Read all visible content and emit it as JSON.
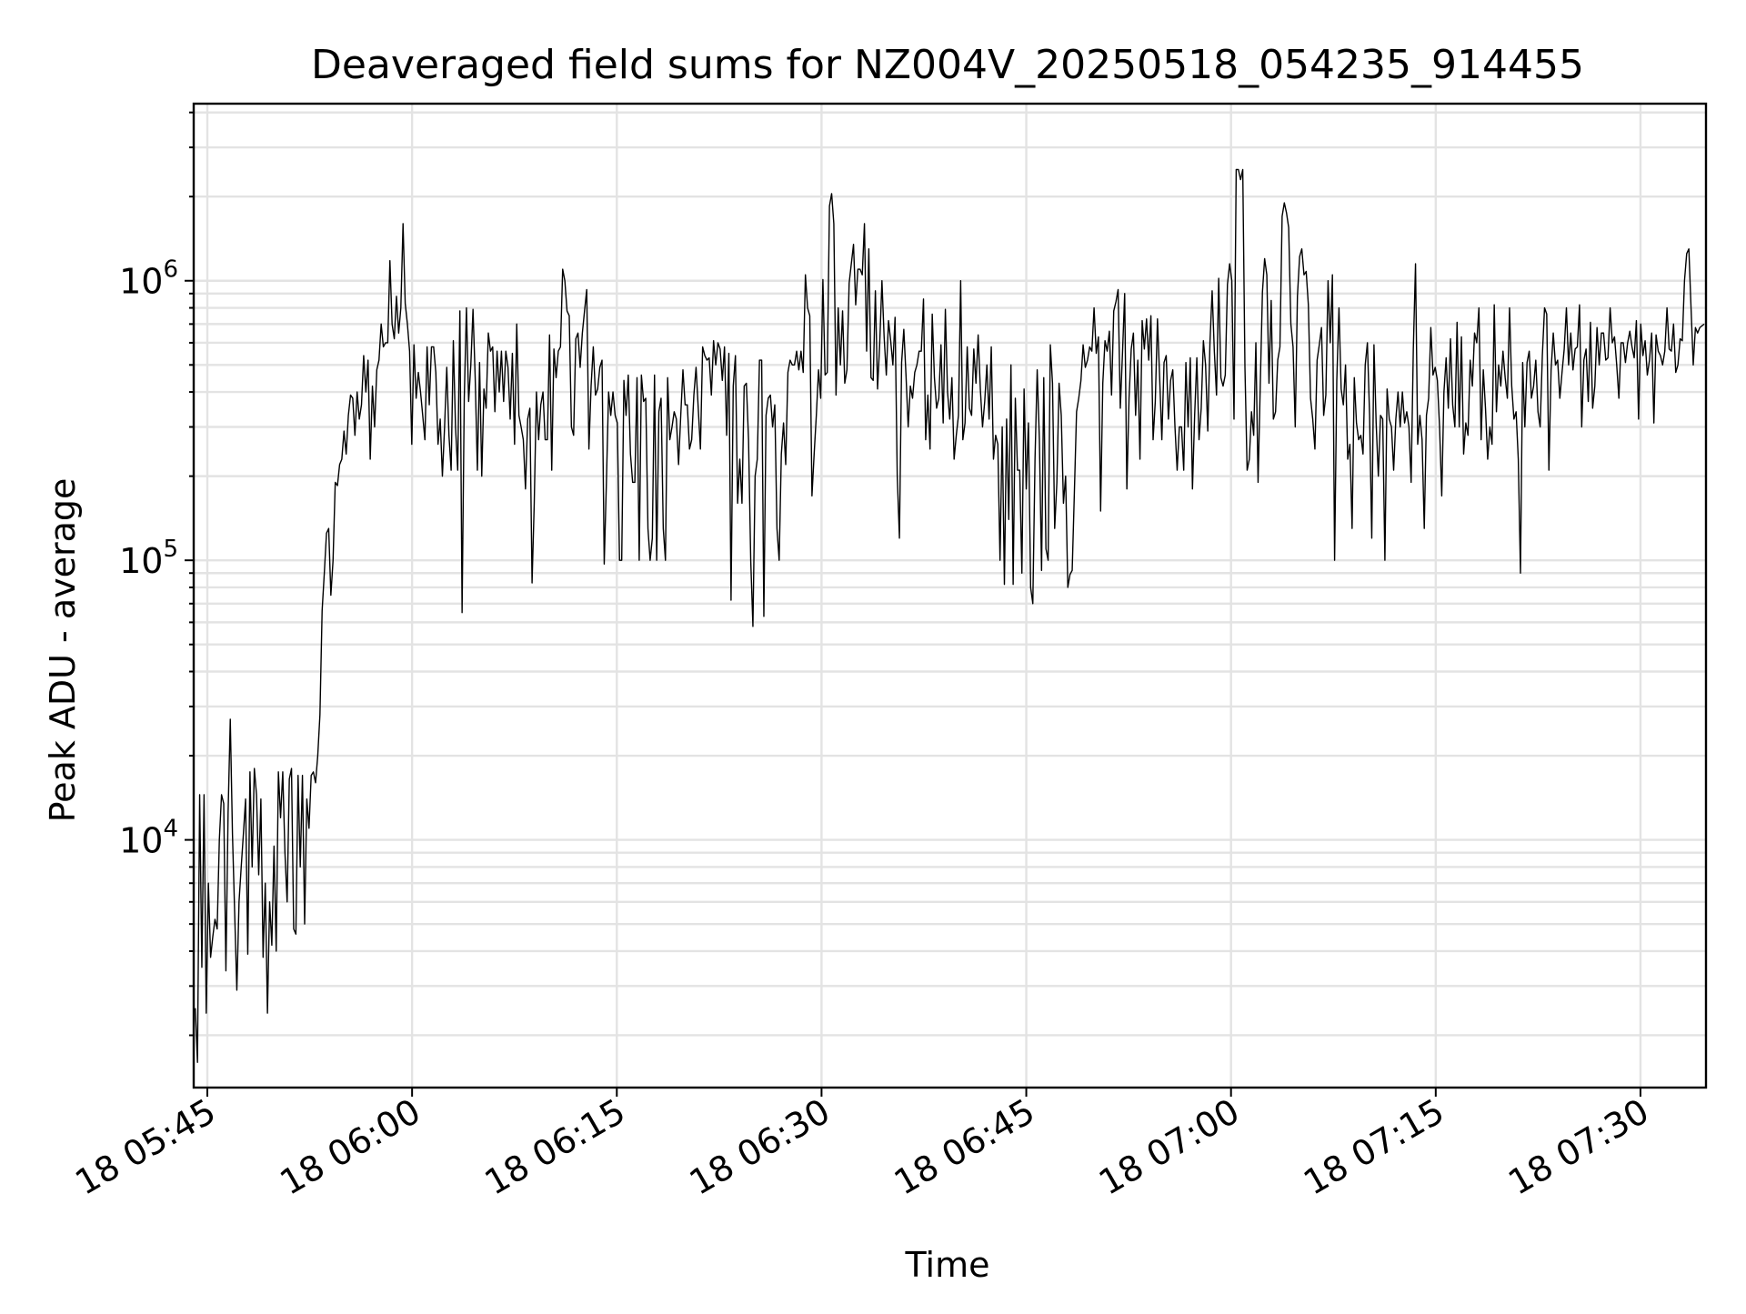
{
  "chart_data": {
    "type": "line",
    "title": "Deaveraged field sums for NZ004V_20250518_054235_914455",
    "xlabel": "Time",
    "ylabel": "Peak ADU - average",
    "yscale": "log",
    "ylim": [
      1300,
      4300000
    ],
    "xlim": [
      "2025-05-18 05:44:00",
      "2025-05-18 07:34:48"
    ],
    "x_start": "2025-05-18 05:44:07",
    "x_end": "2025-05-18 07:34:40",
    "grid": true,
    "legend": "none",
    "line_color": "#000000",
    "x_ticks": [
      {
        "value": "2025-05-18 05:45",
        "label": "18 05:45"
      },
      {
        "value": "2025-05-18 06:00",
        "label": "18 06:00"
      },
      {
        "value": "2025-05-18 06:15",
        "label": "18 06:15"
      },
      {
        "value": "2025-05-18 06:30",
        "label": "18 06:30"
      },
      {
        "value": "2025-05-18 06:45",
        "label": "18 06:45"
      },
      {
        "value": "2025-05-18 07:00",
        "label": "18 07:00"
      },
      {
        "value": "2025-05-18 07:15",
        "label": "18 07:15"
      },
      {
        "value": "2025-05-18 07:30",
        "label": "18 07:30"
      }
    ],
    "y_ticks": [
      {
        "value": 10000,
        "base": "10",
        "exp": "4"
      },
      {
        "value": 100000,
        "base": "10",
        "exp": "5"
      },
      {
        "value": 1000000,
        "base": "10",
        "exp": "6"
      }
    ],
    "series": [
      {
        "values": [
          2500,
          1600,
          14500,
          3500,
          14500,
          2400,
          7000,
          3800,
          4500,
          5200,
          4800,
          10000,
          14500,
          13500,
          3400,
          12500,
          27000,
          10500,
          5500,
          2900,
          6000,
          8000,
          10500,
          14000,
          3900,
          17500,
          8000,
          18000,
          14500,
          7500,
          14000,
          3800,
          7000,
          2400,
          6000,
          4200,
          9500,
          4000,
          17500,
          12000,
          17500,
          9000,
          6000,
          16500,
          18000,
          4800,
          4600,
          17000,
          8000,
          17000,
          5000,
          14000,
          11000,
          17000,
          17500,
          16000,
          20000,
          28000,
          66000,
          90000,
          125000,
          130000,
          75000,
          100000,
          190000,
          185000,
          220000,
          230000,
          290000,
          240000,
          330000,
          390000,
          380000,
          280000,
          400000,
          320000,
          360000,
          540000,
          400000,
          520000,
          230000,
          420000,
          300000,
          480000,
          520000,
          700000,
          580000,
          600000,
          600000,
          1180000,
          700000,
          620000,
          880000,
          650000,
          800000,
          1600000,
          830000,
          700000,
          560000,
          260000,
          590000,
          380000,
          470000,
          400000,
          330000,
          270000,
          580000,
          360000,
          580000,
          580000,
          470000,
          260000,
          320000,
          200000,
          300000,
          490000,
          280000,
          210000,
          610000,
          300000,
          210000,
          780000,
          65000,
          380000,
          800000,
          370000,
          500000,
          790000,
          450000,
          210000,
          510000,
          200000,
          410000,
          350000,
          650000,
          560000,
          580000,
          340000,
          560000,
          400000,
          560000,
          370000,
          560000,
          490000,
          320000,
          550000,
          260000,
          700000,
          330000,
          300000,
          270000,
          180000,
          320000,
          350000,
          83000,
          160000,
          400000,
          270000,
          360000,
          400000,
          270000,
          270000,
          640000,
          210000,
          570000,
          450000,
          560000,
          580000,
          1100000,
          1000000,
          780000,
          750000,
          300000,
          280000,
          620000,
          650000,
          490000,
          650000,
          780000,
          930000,
          250000,
          420000,
          580000,
          390000,
          410000,
          490000,
          520000,
          97000,
          190000,
          400000,
          330000,
          400000,
          330000,
          310000,
          100000,
          100000,
          440000,
          330000,
          460000,
          240000,
          190000,
          190000,
          450000,
          100000,
          460000,
          370000,
          380000,
          130000,
          100000,
          120000,
          460000,
          100000,
          340000,
          380000,
          130000,
          100000,
          450000,
          270000,
          300000,
          340000,
          320000,
          220000,
          330000,
          480000,
          360000,
          360000,
          250000,
          270000,
          390000,
          490000,
          350000,
          250000,
          580000,
          540000,
          520000,
          530000,
          390000,
          610000,
          500000,
          600000,
          570000,
          440000,
          580000,
          280000,
          550000,
          72000,
          420000,
          540000,
          160000,
          230000,
          160000,
          420000,
          430000,
          270000,
          100000,
          58000,
          200000,
          230000,
          520000,
          520000,
          63000,
          330000,
          380000,
          390000,
          300000,
          360000,
          130000,
          100000,
          240000,
          310000,
          220000,
          470000,
          520000,
          500000,
          500000,
          560000,
          480000,
          560000,
          470000,
          1050000,
          800000,
          750000,
          170000,
          240000,
          330000,
          480000,
          380000,
          1010000,
          460000,
          470000,
          1850000,
          2050000,
          1600000,
          390000,
          800000,
          500000,
          780000,
          430000,
          480000,
          980000,
          1150000,
          1350000,
          820000,
          1100000,
          1100000,
          1050000,
          1600000,
          560000,
          1300000,
          450000,
          440000,
          920000,
          410000,
          600000,
          1000000,
          630000,
          460000,
          720000,
          610000,
          500000,
          740000,
          200000,
          120000,
          510000,
          670000,
          460000,
          300000,
          420000,
          380000,
          470000,
          500000,
          560000,
          560000,
          860000,
          270000,
          390000,
          250000,
          760000,
          450000,
          350000,
          380000,
          590000,
          310000,
          790000,
          400000,
          320000,
          450000,
          230000,
          280000,
          330000,
          1000000,
          270000,
          310000,
          580000,
          350000,
          330000,
          570000,
          430000,
          640000,
          410000,
          300000,
          370000,
          500000,
          320000,
          580000,
          230000,
          280000,
          260000,
          100000,
          300000,
          82000,
          320000,
          140000,
          500000,
          82000,
          380000,
          210000,
          210000,
          90000,
          410000,
          180000,
          310000,
          80000,
          70000,
          230000,
          480000,
          270000,
          92000,
          450000,
          110000,
          100000,
          590000,
          430000,
          130000,
          190000,
          430000,
          330000,
          160000,
          200000,
          80000,
          89000,
          92000,
          175000,
          340000,
          380000,
          440000,
          590000,
          490000,
          520000,
          580000,
          560000,
          800000,
          550000,
          630000,
          150000,
          430000,
          610000,
          560000,
          660000,
          390000,
          780000,
          840000,
          930000,
          350000,
          550000,
          900000,
          180000,
          380000,
          570000,
          650000,
          330000,
          520000,
          230000,
          720000,
          570000,
          730000,
          520000,
          750000,
          270000,
          370000,
          730000,
          450000,
          270000,
          510000,
          540000,
          320000,
          440000,
          480000,
          300000,
          210000,
          300000,
          300000,
          210000,
          510000,
          300000,
          530000,
          180000,
          330000,
          530000,
          270000,
          350000,
          610000,
          500000,
          290000,
          600000,
          920000,
          560000,
          390000,
          1020000,
          450000,
          420000,
          460000,
          970000,
          1150000,
          1000000,
          320000,
          2500000,
          2500000,
          2300000,
          2500000,
          490000,
          210000,
          230000,
          340000,
          280000,
          600000,
          190000,
          420000,
          910000,
          1200000,
          1050000,
          430000,
          850000,
          320000,
          340000,
          520000,
          580000,
          1700000,
          1900000,
          1750000,
          1550000,
          700000,
          580000,
          300000,
          880000,
          1220000,
          1300000,
          1050000,
          1080000,
          820000,
          380000,
          320000,
          250000,
          520000,
          590000,
          680000,
          330000,
          390000,
          1000000,
          600000,
          1050000,
          100000,
          440000,
          800000,
          410000,
          360000,
          500000,
          230000,
          260000,
          130000,
          450000,
          310000,
          270000,
          280000,
          240000,
          500000,
          600000,
          330000,
          120000,
          590000,
          310000,
          200000,
          330000,
          320000,
          100000,
          410000,
          320000,
          300000,
          210000,
          320000,
          400000,
          300000,
          400000,
          310000,
          340000,
          300000,
          190000,
          570000,
          1150000,
          260000,
          330000,
          270000,
          130000,
          330000,
          380000,
          680000,
          460000,
          490000,
          440000,
          300000,
          170000,
          400000,
          530000,
          350000,
          620000,
          360000,
          300000,
          710000,
          300000,
          630000,
          240000,
          310000,
          280000,
          520000,
          420000,
          650000,
          600000,
          800000,
          270000,
          480000,
          350000,
          230000,
          300000,
          260000,
          820000,
          340000,
          500000,
          420000,
          560000,
          450000,
          380000,
          800000,
          420000,
          320000,
          340000,
          230000,
          90000,
          510000,
          300000,
          510000,
          560000,
          380000,
          420000,
          520000,
          340000,
          300000,
          540000,
          800000,
          760000,
          210000,
          480000,
          650000,
          500000,
          520000,
          380000,
          470000,
          570000,
          800000,
          500000,
          650000,
          480000,
          570000,
          580000,
          820000,
          300000,
          520000,
          570000,
          370000,
          710000,
          350000,
          420000,
          680000,
          500000,
          650000,
          650000,
          520000,
          530000,
          800000,
          600000,
          630000,
          500000,
          380000,
          600000,
          600000,
          510000,
          600000,
          660000,
          580000,
          530000,
          720000,
          320000,
          700000,
          540000,
          610000,
          460000,
          520000,
          650000,
          310000,
          640000,
          560000,
          540000,
          500000,
          560000,
          800000,
          570000,
          560000,
          700000,
          470000,
          500000,
          620000,
          610000,
          1000000,
          1250000,
          1300000,
          800000,
          500000,
          680000,
          650000,
          680000,
          690000,
          700000
        ]
      }
    ]
  }
}
